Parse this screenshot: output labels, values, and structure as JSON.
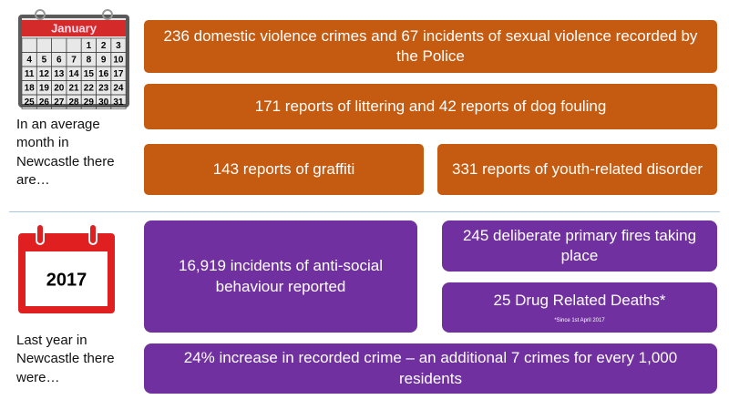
{
  "calendar": {
    "month": "January",
    "days": [
      1,
      2,
      3,
      4,
      5,
      6,
      7,
      8,
      9,
      10,
      11,
      12,
      13,
      14,
      15,
      16,
      17,
      18,
      19,
      20,
      21,
      22,
      23,
      24,
      25,
      26,
      27,
      28,
      29,
      30,
      31
    ]
  },
  "monthly": {
    "intro": "In an average month in Newcastle there are…",
    "items": [
      "236 domestic violence crimes and 67 incidents of sexual violence recorded by the Police",
      "171 reports of littering and 42 reports of dog fouling",
      "143 reports of graffiti",
      "331 reports of youth-related disorder"
    ]
  },
  "yearly": {
    "year_icon": "2017",
    "intro": "Last year in Newcastle there were…",
    "items": [
      "16,919 incidents of anti-social behaviour reported",
      "245 deliberate primary fires taking place",
      "25 Drug Related Deaths*",
      "24% increase in recorded crime – an additional 7 crimes for every 1,000 residents"
    ],
    "footnote": "*Since 1st April 2017"
  }
}
